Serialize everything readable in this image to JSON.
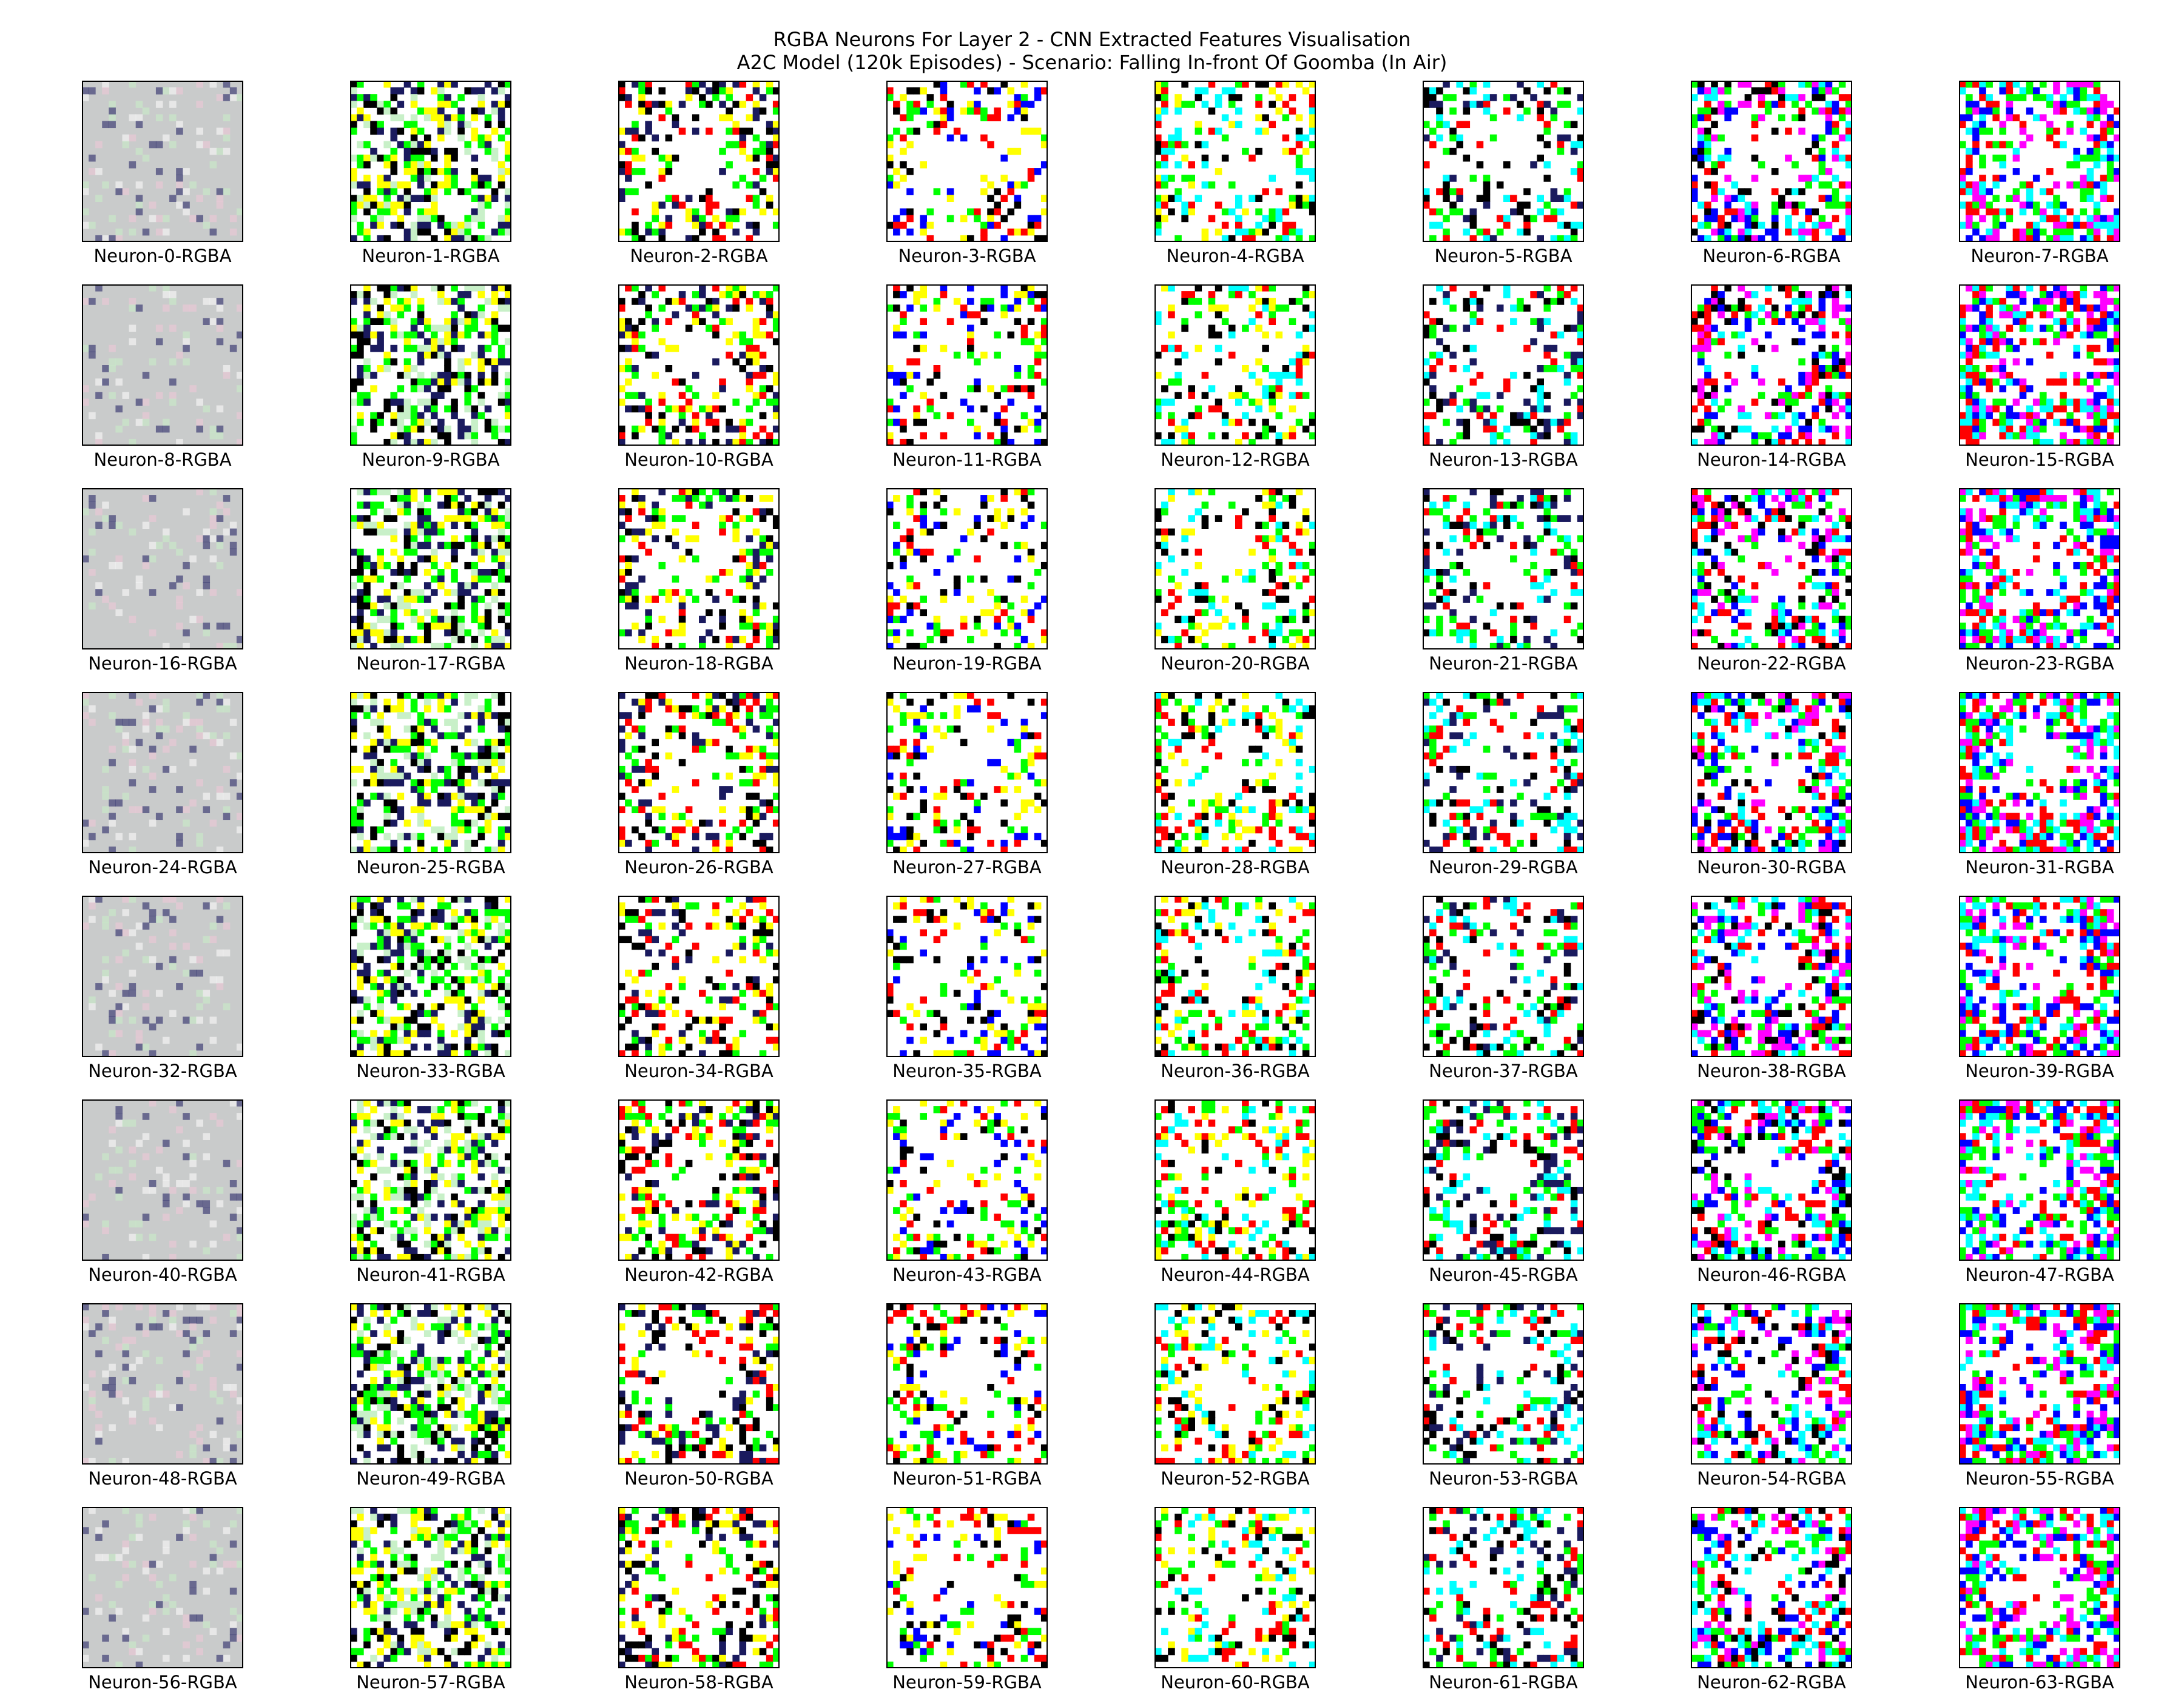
{
  "figure": {
    "title_line1": "RGBA Neurons For Layer 2 - CNN Extracted Features Visualisation",
    "title_line2": "A2C Model (120k Episodes) - Scenario: Falling In-front Of Goomba (In Air)"
  },
  "grid": {
    "rows": 8,
    "cols": 8,
    "label_suffix": "-RGBA",
    "neurons": [
      "Neuron-0-RGBA",
      "Neuron-1-RGBA",
      "Neuron-2-RGBA",
      "Neuron-3-RGBA",
      "Neuron-4-RGBA",
      "Neuron-5-RGBA",
      "Neuron-6-RGBA",
      "Neuron-7-RGBA",
      "Neuron-8-RGBA",
      "Neuron-9-RGBA",
      "Neuron-10-RGBA",
      "Neuron-11-RGBA",
      "Neuron-12-RGBA",
      "Neuron-13-RGBA",
      "Neuron-14-RGBA",
      "Neuron-15-RGBA",
      "Neuron-16-RGBA",
      "Neuron-17-RGBA",
      "Neuron-18-RGBA",
      "Neuron-19-RGBA",
      "Neuron-20-RGBA",
      "Neuron-21-RGBA",
      "Neuron-22-RGBA",
      "Neuron-23-RGBA",
      "Neuron-24-RGBA",
      "Neuron-25-RGBA",
      "Neuron-26-RGBA",
      "Neuron-27-RGBA",
      "Neuron-28-RGBA",
      "Neuron-29-RGBA",
      "Neuron-30-RGBA",
      "Neuron-31-RGBA",
      "Neuron-32-RGBA",
      "Neuron-33-RGBA",
      "Neuron-34-RGBA",
      "Neuron-35-RGBA",
      "Neuron-36-RGBA",
      "Neuron-37-RGBA",
      "Neuron-38-RGBA",
      "Neuron-39-RGBA",
      "Neuron-40-RGBA",
      "Neuron-41-RGBA",
      "Neuron-42-RGBA",
      "Neuron-43-RGBA",
      "Neuron-44-RGBA",
      "Neuron-45-RGBA",
      "Neuron-46-RGBA",
      "Neuron-47-RGBA",
      "Neuron-48-RGBA",
      "Neuron-49-RGBA",
      "Neuron-50-RGBA",
      "Neuron-51-RGBA",
      "Neuron-52-RGBA",
      "Neuron-53-RGBA",
      "Neuron-54-RGBA",
      "Neuron-55-RGBA",
      "Neuron-56-RGBA",
      "Neuron-57-RGBA",
      "Neuron-58-RGBA",
      "Neuron-59-RGBA",
      "Neuron-60-RGBA",
      "Neuron-61-RGBA",
      "Neuron-62-RGBA",
      "Neuron-63-RGBA"
    ]
  },
  "palette": {
    "gray": "#c9cbcb",
    "white": "#ffffff",
    "black": "#000000",
    "navy": "#1a1a5e",
    "red": "#ff0000",
    "green": "#00ff00",
    "blue": "#0000ff",
    "cyan": "#00ffff",
    "magenta": "#ff00ff",
    "yellow": "#ffff00",
    "pale_green": "#c8f0c8",
    "pale_pink": "#f0c8d8"
  }
}
